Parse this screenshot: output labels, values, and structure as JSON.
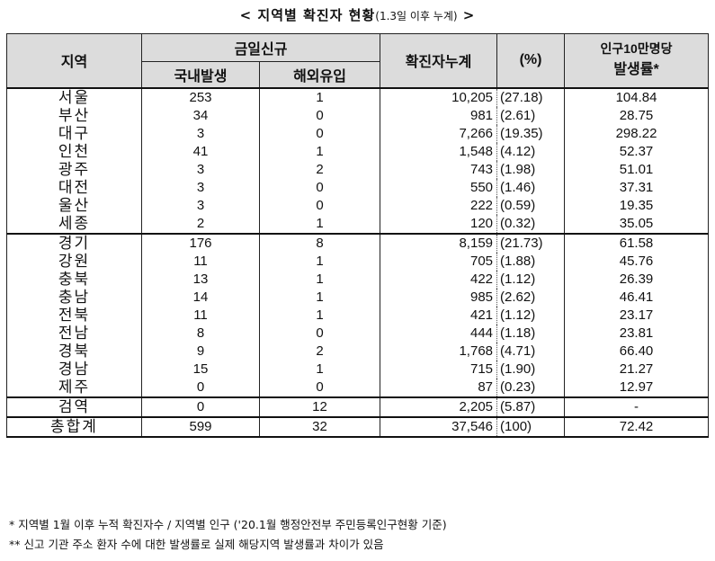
{
  "title": {
    "main": "< 지역별 확진자 현황",
    "sub": "(1.3일 이후 누계)",
    "end": " >"
  },
  "headers": {
    "region": "지역",
    "today_new": "금일신규",
    "domestic": "국내발생",
    "overseas": "해외유입",
    "cumulative": "확진자누계",
    "pct": "(%)",
    "rate_line1": "인구10만명당",
    "rate_line2": "발생률*"
  },
  "rows": [
    {
      "region": "서울",
      "domestic": "253",
      "overseas": "1",
      "cumulative": "10,205",
      "pct": "(27.18)",
      "rate": "104.84"
    },
    {
      "region": "부산",
      "domestic": "34",
      "overseas": "0",
      "cumulative": "981",
      "pct": "(2.61)",
      "rate": "28.75"
    },
    {
      "region": "대구",
      "domestic": "3",
      "overseas": "0",
      "cumulative": "7,266",
      "pct": "(19.35)",
      "rate": "298.22"
    },
    {
      "region": "인천",
      "domestic": "41",
      "overseas": "1",
      "cumulative": "1,548",
      "pct": "(4.12)",
      "rate": "52.37"
    },
    {
      "region": "광주",
      "domestic": "3",
      "overseas": "2",
      "cumulative": "743",
      "pct": "(1.98)",
      "rate": "51.01"
    },
    {
      "region": "대전",
      "domestic": "3",
      "overseas": "0",
      "cumulative": "550",
      "pct": "(1.46)",
      "rate": "37.31"
    },
    {
      "region": "울산",
      "domestic": "3",
      "overseas": "0",
      "cumulative": "222",
      "pct": "(0.59)",
      "rate": "19.35"
    },
    {
      "region": "세종",
      "domestic": "2",
      "overseas": "1",
      "cumulative": "120",
      "pct": "(0.32)",
      "rate": "35.05"
    },
    {
      "region": "경기",
      "domestic": "176",
      "overseas": "8",
      "cumulative": "8,159",
      "pct": "(21.73)",
      "rate": "61.58"
    },
    {
      "region": "강원",
      "domestic": "11",
      "overseas": "1",
      "cumulative": "705",
      "pct": "(1.88)",
      "rate": "45.76"
    },
    {
      "region": "충북",
      "domestic": "13",
      "overseas": "1",
      "cumulative": "422",
      "pct": "(1.12)",
      "rate": "26.39"
    },
    {
      "region": "충남",
      "domestic": "14",
      "overseas": "1",
      "cumulative": "985",
      "pct": "(2.62)",
      "rate": "46.41"
    },
    {
      "region": "전북",
      "domestic": "11",
      "overseas": "1",
      "cumulative": "421",
      "pct": "(1.12)",
      "rate": "23.17"
    },
    {
      "region": "전남",
      "domestic": "8",
      "overseas": "0",
      "cumulative": "444",
      "pct": "(1.18)",
      "rate": "23.81"
    },
    {
      "region": "경북",
      "domestic": "9",
      "overseas": "2",
      "cumulative": "1,768",
      "pct": "(4.71)",
      "rate": "66.40"
    },
    {
      "region": "경남",
      "domestic": "15",
      "overseas": "1",
      "cumulative": "715",
      "pct": "(1.90)",
      "rate": "21.27"
    },
    {
      "region": "제주",
      "domestic": "0",
      "overseas": "0",
      "cumulative": "87",
      "pct": "(0.23)",
      "rate": "12.97"
    },
    {
      "region": "검역",
      "domestic": "0",
      "overseas": "12",
      "cumulative": "2,205",
      "pct": "(5.87)",
      "rate": "-"
    },
    {
      "region": "총합계",
      "domestic": "599",
      "overseas": "32",
      "cumulative": "37,546",
      "pct": "(100)",
      "rate": "72.42"
    }
  ],
  "notes": [
    " * 지역별 1월 이후 누적 확진자수 / 지역별 인구 ('20.1월 행정안전부 주민등록인구현황 기준)",
    "** 신고 기관 주소 환자 수에 대한 발생률로 실제 해당지역 발생률과 차이가 있음"
  ]
}
